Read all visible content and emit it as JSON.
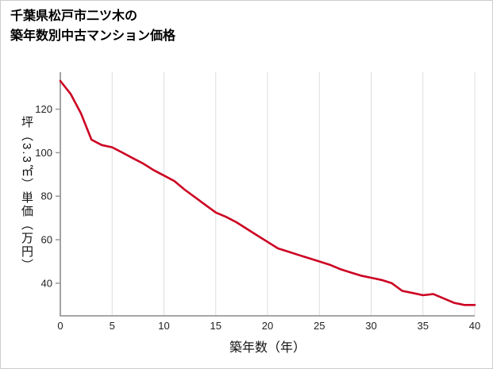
{
  "header": {
    "title_line1": "千葉県松戸市二ツ木の",
    "title_line2": "築年数別中古マンション価格"
  },
  "chart_data": {
    "type": "line",
    "title": "千葉県松戸市二ツ木の築年数別中古マンション価格",
    "xlabel": "築年数（年）",
    "ylabel": "坪（3.3㎡）単価（万円）",
    "x": [
      0,
      1,
      2,
      3,
      4,
      5,
      6,
      7,
      8,
      9,
      10,
      11,
      12,
      13,
      14,
      15,
      16,
      17,
      18,
      19,
      20,
      21,
      22,
      23,
      24,
      25,
      26,
      27,
      28,
      29,
      30,
      31,
      32,
      33,
      34,
      35,
      36,
      37,
      38,
      39,
      40
    ],
    "values": [
      133,
      127,
      118,
      106,
      103.5,
      102.5,
      100,
      97.5,
      95,
      92,
      89.5,
      87,
      83,
      79.5,
      76,
      72.5,
      70.5,
      68,
      65,
      62,
      59,
      56,
      54.5,
      53,
      51.5,
      50,
      48.5,
      46.5,
      45,
      43.5,
      42.5,
      41.5,
      40,
      36.5,
      35.5,
      34.5,
      35,
      33,
      31,
      30,
      30
    ],
    "xlim": [
      0,
      40
    ],
    "ylim": [
      25,
      137
    ],
    "x_ticks": [
      0,
      5,
      10,
      15,
      20,
      25,
      30,
      35,
      40
    ],
    "y_ticks": [
      40,
      60,
      80,
      100,
      120
    ],
    "grid": "vertical",
    "legend": "none",
    "line_color": "#cc0022",
    "axis_color": "#999999",
    "grid_color": "#dddddd",
    "tick_label_color": "#222222"
  }
}
